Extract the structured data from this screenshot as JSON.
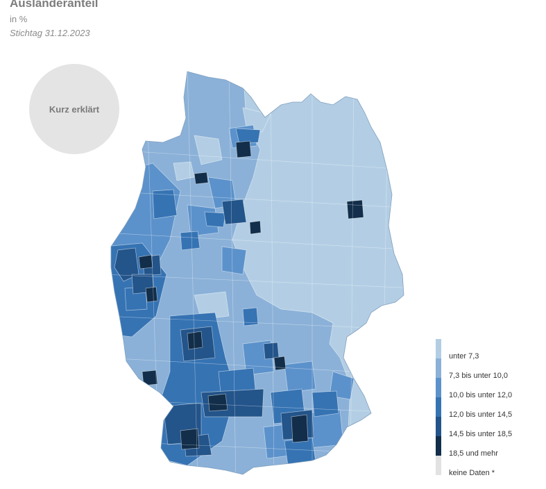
{
  "header": {
    "title": "Ausländeranteil",
    "unit": "in %",
    "date": "Stichtag 31.12.2023"
  },
  "explain_button": {
    "label": "Kurz erklärt"
  },
  "legend": {
    "items": [
      {
        "label": "unter 7,3",
        "color": "#b3cee4"
      },
      {
        "label": "7,3 bis unter 10,0",
        "color": "#8bb1d8"
      },
      {
        "label": "10,0 bis unter 12,0",
        "color": "#5c92cb"
      },
      {
        "label": "12,0 bis unter 14,5",
        "color": "#3673b3"
      },
      {
        "label": "14,5 bis unter 18,5",
        "color": "#23548a"
      },
      {
        "label": "18,5 und mehr",
        "color": "#122e4a"
      },
      {
        "label": "keine Daten *",
        "color": "#e2e2e2"
      }
    ]
  }
}
